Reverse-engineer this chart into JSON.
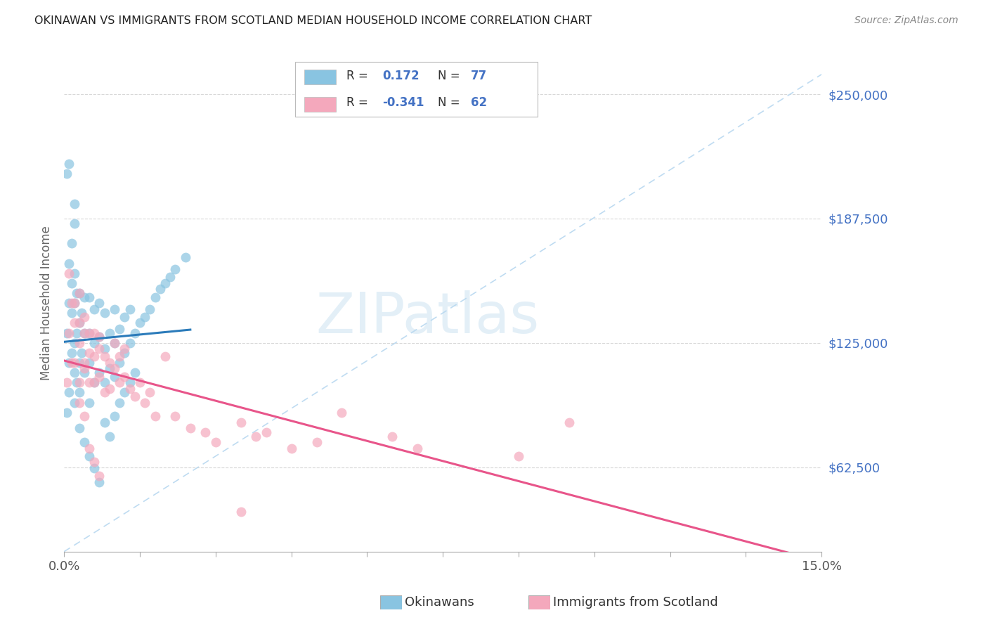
{
  "title": "OKINAWAN VS IMMIGRANTS FROM SCOTLAND MEDIAN HOUSEHOLD INCOME CORRELATION CHART",
  "source": "Source: ZipAtlas.com",
  "ylabel": "Median Household Income",
  "xmin": 0.0,
  "xmax": 0.15,
  "ymin": 20000,
  "ymax": 270000,
  "yticks": [
    62500,
    125000,
    187500,
    250000
  ],
  "ytick_labels_right": [
    "$62,500",
    "$125,000",
    "$187,500",
    "$250,000"
  ],
  "xticks": [
    0.0,
    0.015,
    0.03,
    0.045,
    0.06,
    0.075,
    0.09,
    0.105,
    0.12,
    0.135,
    0.15
  ],
  "xtick_labels": [
    "0.0%",
    "",
    "",
    "",
    "",
    "",
    "",
    "",
    "",
    "",
    "15.0%"
  ],
  "blue_color": "#89c4e1",
  "pink_color": "#f4a8bc",
  "blue_line_color": "#2b7bba",
  "pink_line_color": "#e8558a",
  "diag_line_color": "#b8d8f0",
  "right_label_color": "#4472c4",
  "title_color": "#222222",
  "axis_label_color": "#666666",
  "grid_color": "#d8d8d8",
  "blue_R": 0.172,
  "blue_N": 77,
  "pink_R": -0.341,
  "pink_N": 62,
  "legend_label_blue": "Okinawans",
  "legend_label_pink": "Immigrants from Scotland",
  "watermark": "ZIPatlas",
  "blue_scatter_x": [
    0.0005,
    0.0005,
    0.001,
    0.001,
    0.001,
    0.001,
    0.0015,
    0.0015,
    0.0015,
    0.002,
    0.002,
    0.002,
    0.002,
    0.002,
    0.0025,
    0.0025,
    0.0025,
    0.003,
    0.003,
    0.003,
    0.003,
    0.0035,
    0.0035,
    0.004,
    0.004,
    0.004,
    0.005,
    0.005,
    0.005,
    0.005,
    0.006,
    0.006,
    0.006,
    0.007,
    0.007,
    0.007,
    0.008,
    0.008,
    0.008,
    0.009,
    0.009,
    0.01,
    0.01,
    0.01,
    0.011,
    0.011,
    0.012,
    0.012,
    0.013,
    0.013,
    0.014,
    0.015,
    0.016,
    0.017,
    0.018,
    0.019,
    0.02,
    0.021,
    0.022,
    0.024,
    0.0005,
    0.001,
    0.0015,
    0.002,
    0.002,
    0.003,
    0.004,
    0.005,
    0.006,
    0.007,
    0.008,
    0.009,
    0.01,
    0.011,
    0.012,
    0.013,
    0.014
  ],
  "blue_scatter_y": [
    90000,
    130000,
    100000,
    115000,
    145000,
    165000,
    120000,
    140000,
    155000,
    95000,
    110000,
    125000,
    145000,
    160000,
    105000,
    130000,
    150000,
    100000,
    115000,
    135000,
    150000,
    120000,
    140000,
    110000,
    130000,
    148000,
    95000,
    115000,
    130000,
    148000,
    105000,
    125000,
    142000,
    110000,
    128000,
    145000,
    105000,
    122000,
    140000,
    112000,
    130000,
    108000,
    125000,
    142000,
    115000,
    132000,
    120000,
    138000,
    125000,
    142000,
    130000,
    135000,
    138000,
    142000,
    148000,
    152000,
    155000,
    158000,
    162000,
    168000,
    210000,
    215000,
    175000,
    185000,
    195000,
    82000,
    75000,
    68000,
    62000,
    55000,
    85000,
    78000,
    88000,
    95000,
    100000,
    105000,
    110000
  ],
  "pink_scatter_x": [
    0.0005,
    0.001,
    0.001,
    0.0015,
    0.0015,
    0.002,
    0.002,
    0.002,
    0.003,
    0.003,
    0.003,
    0.003,
    0.004,
    0.004,
    0.004,
    0.004,
    0.005,
    0.005,
    0.005,
    0.006,
    0.006,
    0.006,
    0.007,
    0.007,
    0.007,
    0.008,
    0.008,
    0.009,
    0.009,
    0.01,
    0.01,
    0.011,
    0.011,
    0.012,
    0.012,
    0.013,
    0.014,
    0.015,
    0.016,
    0.017,
    0.018,
    0.02,
    0.022,
    0.025,
    0.028,
    0.03,
    0.035,
    0.038,
    0.04,
    0.045,
    0.05,
    0.055,
    0.065,
    0.07,
    0.09,
    0.1,
    0.003,
    0.004,
    0.005,
    0.006,
    0.007,
    0.035
  ],
  "pink_scatter_y": [
    105000,
    160000,
    130000,
    145000,
    115000,
    135000,
    115000,
    145000,
    150000,
    125000,
    105000,
    135000,
    138000,
    112000,
    130000,
    115000,
    120000,
    105000,
    130000,
    118000,
    105000,
    130000,
    122000,
    108000,
    128000,
    118000,
    100000,
    115000,
    102000,
    112000,
    125000,
    105000,
    118000,
    108000,
    122000,
    102000,
    98000,
    105000,
    95000,
    100000,
    88000,
    118000,
    88000,
    82000,
    80000,
    75000,
    85000,
    78000,
    80000,
    72000,
    75000,
    90000,
    78000,
    72000,
    68000,
    85000,
    95000,
    88000,
    72000,
    65000,
    58000,
    40000
  ]
}
